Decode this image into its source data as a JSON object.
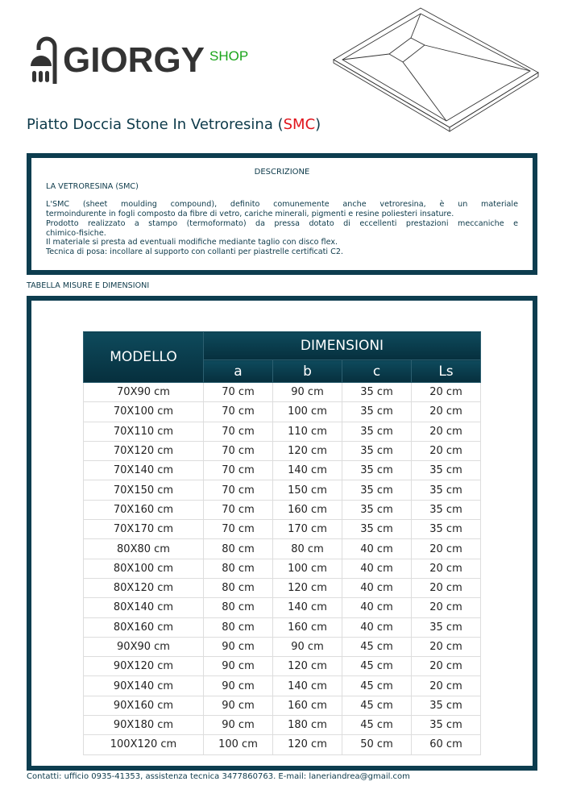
{
  "logo": {
    "brand": "GIORGY",
    "shop": "SHOP"
  },
  "title": {
    "main": "Piatto Doccia Stone In Vetroresina (",
    "accent": "SMC",
    "close": ")"
  },
  "description": {
    "heading": "DESCRIZIONE",
    "subheading": "LA VETRORESINA (SMC)",
    "lines": [
      "L'SMC (sheet moulding compound), definito comunemente anche vetroresina, è un materiale",
      "termoindurente in fogli composto da fibre di vetro, cariche minerali, pigmenti e resine poliesteri insature.",
      "Prodotto realizzato a stampo (termoformato) da pressa dotato di eccellenti prestazioni meccaniche e",
      "chimico-fisiche.",
      "Il materiale si presta ad eventuali modifiche mediante taglio con disco flex.",
      "Tecnica di posa: incollare al supporto con collanti per piastrelle certificati C2."
    ]
  },
  "table": {
    "section_label": "TABELLA MISURE E DIMENSIONI",
    "header_model": "MODELLO",
    "header_group": "DIMENSIONI",
    "sub_headers": [
      "a",
      "b",
      "c",
      "Ls"
    ],
    "rows": [
      [
        "70X90 cm",
        "70 cm",
        "90 cm",
        "35 cm",
        "20 cm"
      ],
      [
        "70X100 cm",
        "70 cm",
        "100 cm",
        "35 cm",
        "20 cm"
      ],
      [
        "70X110 cm",
        "70 cm",
        "110 cm",
        "35 cm",
        "20 cm"
      ],
      [
        "70X120 cm",
        "70 cm",
        "120 cm",
        "35 cm",
        "20 cm"
      ],
      [
        "70X140 cm",
        "70 cm",
        "140 cm",
        "35 cm",
        "35 cm"
      ],
      [
        "70X150 cm",
        "70 cm",
        "150 cm",
        "35 cm",
        "35 cm"
      ],
      [
        "70X160 cm",
        "70 cm",
        "160 cm",
        "35 cm",
        "35 cm"
      ],
      [
        "70X170 cm",
        "70 cm",
        "170 cm",
        "35 cm",
        "35 cm"
      ],
      [
        "80X80 cm",
        "80 cm",
        "80 cm",
        "40 cm",
        "20 cm"
      ],
      [
        "80X100 cm",
        "80 cm",
        "100 cm",
        "40 cm",
        "20 cm"
      ],
      [
        "80X120 cm",
        "80 cm",
        "120 cm",
        "40 cm",
        "20 cm"
      ],
      [
        "80X140 cm",
        "80 cm",
        "140 cm",
        "40 cm",
        "20 cm"
      ],
      [
        "80X160 cm",
        "80 cm",
        "160 cm",
        "40 cm",
        "35 cm"
      ],
      [
        "90X90 cm",
        "90 cm",
        "90 cm",
        "45 cm",
        "20 cm"
      ],
      [
        "90X120 cm",
        "90 cm",
        "120 cm",
        "45 cm",
        "20 cm"
      ],
      [
        "90X140 cm",
        "90 cm",
        "140 cm",
        "45 cm",
        "20 cm"
      ],
      [
        "90X160 cm",
        "90 cm",
        "160 cm",
        "45 cm",
        "35 cm"
      ],
      [
        "90X180 cm",
        "90 cm",
        "180 cm",
        "45 cm",
        "35 cm"
      ],
      [
        "100X120 cm",
        "100 cm",
        "120 cm",
        "50 cm",
        "60 cm"
      ]
    ]
  },
  "footer": "Contatti: ufficio 0935-41353, assistenza tecnica 3477860763.  E-mail: laneriandrea@gmail.com",
  "colors": {
    "frame": "#0d3d4f",
    "accent_red": "#e0141c",
    "shop_green": "#1aa51a"
  }
}
